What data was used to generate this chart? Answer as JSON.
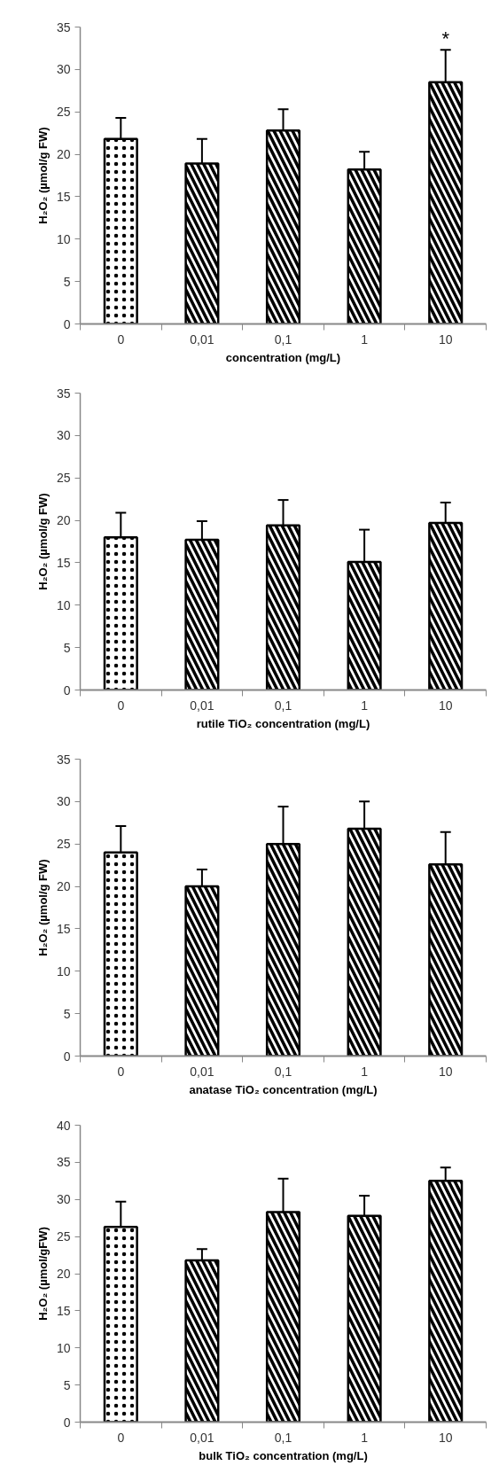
{
  "chart_data": [
    {
      "type": "bar",
      "xlabel": "concentration (mg/L)",
      "ylabel": "H₂O₂ (µmol/g FW)",
      "categories": [
        "0",
        "0,01",
        "0,1",
        "1",
        "10"
      ],
      "values": [
        21.8,
        18.9,
        22.8,
        18.2,
        28.5
      ],
      "errors": [
        2.5,
        2.9,
        2.5,
        2.1,
        3.8
      ],
      "colors": [
        "#ffffff",
        "#ffffff",
        "#ffffff",
        "#ffffff",
        "#ffffff"
      ],
      "ylim": [
        0,
        35
      ],
      "yticks": [
        0,
        5,
        10,
        15,
        20,
        25,
        30,
        35
      ],
      "annotations": [
        "*"
      ]
    },
    {
      "type": "bar",
      "xlabel": "rutile TiO₂ concentration (mg/L)",
      "ylabel": "H₂O₂ (µmol/g FW)",
      "categories": [
        "0",
        "0,01",
        "0,1",
        "1",
        "10"
      ],
      "values": [
        18.0,
        17.7,
        19.4,
        15.1,
        19.7
      ],
      "errors": [
        2.9,
        2.2,
        3.0,
        3.8,
        2.4
      ],
      "colors": [
        "#ffffff",
        "#ffffff",
        "#ffffff",
        "#ffffff",
        "#ffffff"
      ],
      "ylim": [
        0,
        35
      ],
      "yticks": [
        0,
        5,
        10,
        15,
        20,
        25,
        30,
        35
      ]
    },
    {
      "type": "bar",
      "xlabel": "anatase TiO₂ concentration (mg/L)",
      "ylabel": "H₂O₂ (µmol/g FW)",
      "categories": [
        "0",
        "0,01",
        "0,1",
        "1",
        "10"
      ],
      "values": [
        24.0,
        20.0,
        25.0,
        26.8,
        22.6
      ],
      "errors": [
        3.1,
        2.0,
        4.4,
        3.2,
        3.8
      ],
      "colors": [
        "#ffffff",
        "#ffffff",
        "#ffffff",
        "#ffffff",
        "#ffffff"
      ],
      "ylim": [
        0,
        35
      ],
      "yticks": [
        0,
        5,
        10,
        15,
        20,
        25,
        30,
        35
      ]
    },
    {
      "type": "bar",
      "xlabel": "bulk TiO₂ concentration (mg/L)",
      "ylabel": "H₂O₂ (µmol/gFW)",
      "categories": [
        "0",
        "0,01",
        "0,1",
        "1",
        "10"
      ],
      "values": [
        26.3,
        21.8,
        28.3,
        27.8,
        32.5
      ],
      "errors": [
        3.4,
        1.5,
        4.5,
        2.7,
        1.8
      ],
      "colors": [
        "#ffffff",
        "#ffffff",
        "#ffffff",
        "#ffffff",
        "#ffffff"
      ],
      "ylim": [
        0,
        40
      ],
      "yticks": [
        0,
        5,
        10,
        15,
        20,
        25,
        30,
        35,
        40
      ]
    }
  ]
}
